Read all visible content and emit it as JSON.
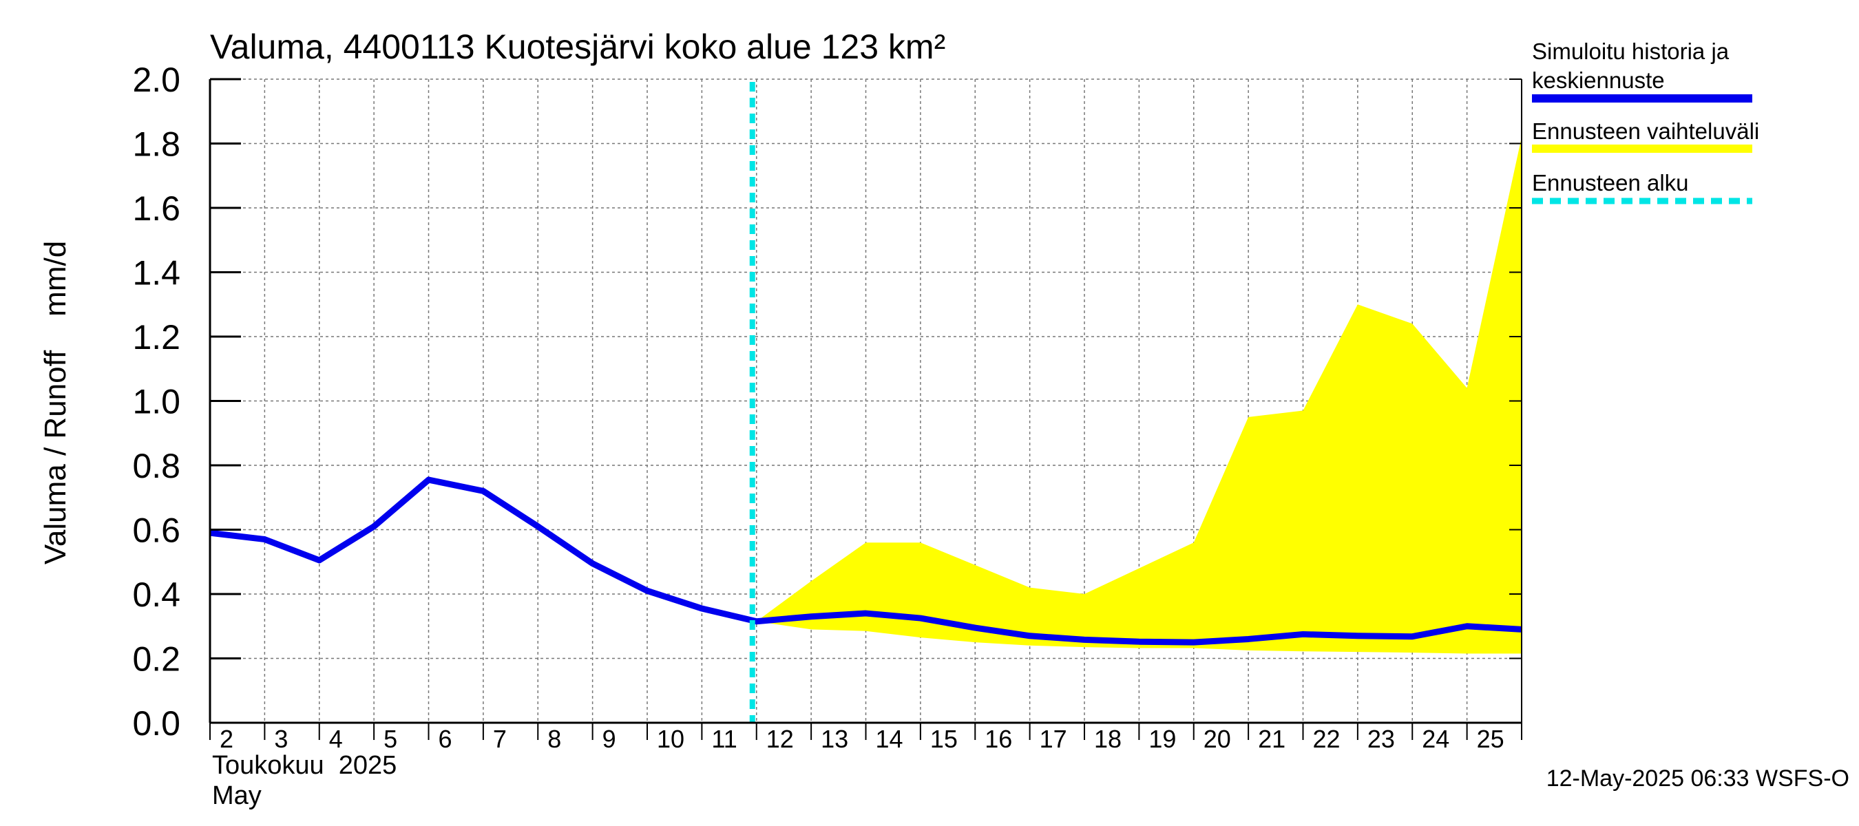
{
  "chart_data": {
    "type": "area",
    "title": "Valuma, 4400113 Kuotesjärvi koko alue 123 km²",
    "ylabel": "Valuma / Runoff    mm/d",
    "ylim": [
      0,
      2.0
    ],
    "yticks": [
      "0.0",
      "0.2",
      "0.4",
      "0.6",
      "0.8",
      "1.0",
      "1.2",
      "1.4",
      "1.6",
      "1.8",
      "2.0"
    ],
    "xlim": [
      2,
      26
    ],
    "xtick_labels": [
      "2",
      "3",
      "4",
      "5",
      "6",
      "7",
      "8",
      "9",
      "10",
      "11",
      "12",
      "13",
      "14",
      "15",
      "16",
      "17",
      "18",
      "19",
      "20",
      "21",
      "22",
      "23",
      "24",
      "25"
    ],
    "month_label_fi": "Toukokuu  2025",
    "month_label_en": "May",
    "grid": true,
    "forecast_start": 12,
    "series": [
      {
        "name": "Simuloitu historia ja keskiennuste",
        "color": "#0000ee",
        "x": [
          2,
          3,
          4,
          5,
          6,
          7,
          8,
          9,
          10,
          11,
          12,
          13,
          14,
          15,
          16,
          17,
          18,
          19,
          20,
          21,
          22,
          23,
          24,
          25,
          26
        ],
        "y": [
          0.59,
          0.57,
          0.505,
          0.61,
          0.755,
          0.72,
          0.61,
          0.495,
          0.41,
          0.355,
          0.315,
          0.33,
          0.34,
          0.325,
          0.295,
          0.27,
          0.258,
          0.252,
          0.25,
          0.26,
          0.275,
          0.27,
          0.268,
          0.3,
          0.29
        ]
      },
      {
        "name": "Ennusteen vaihteluväli",
        "color": "#ffff00",
        "x": [
          12,
          13,
          14,
          15,
          16,
          17,
          18,
          19,
          20,
          21,
          22,
          23,
          24,
          25,
          26
        ],
        "upper": [
          0.315,
          0.44,
          0.56,
          0.56,
          0.49,
          0.42,
          0.4,
          0.48,
          0.56,
          0.95,
          0.97,
          1.3,
          1.24,
          1.04,
          1.82
        ],
        "lower": [
          0.315,
          0.29,
          0.285,
          0.265,
          0.25,
          0.24,
          0.235,
          0.232,
          0.232,
          0.225,
          0.222,
          0.22,
          0.218,
          0.215,
          0.215
        ]
      },
      {
        "name": "Ennusteen alku",
        "color": "#00e5e5"
      }
    ],
    "legend": [
      {
        "label_lines": [
          "Simuloitu historia ja",
          "keskiennuste"
        ],
        "color": "#0000ee",
        "style": "solid"
      },
      {
        "label_lines": [
          "Ennusteen vaihteluväli"
        ],
        "color": "#ffff00",
        "style": "solid"
      },
      {
        "label_lines": [
          "Ennusteen alku"
        ],
        "color": "#00e5e5",
        "style": "dashed"
      }
    ],
    "legend_position": "right",
    "footer": "12-May-2025 06:33 WSFS-O"
  }
}
